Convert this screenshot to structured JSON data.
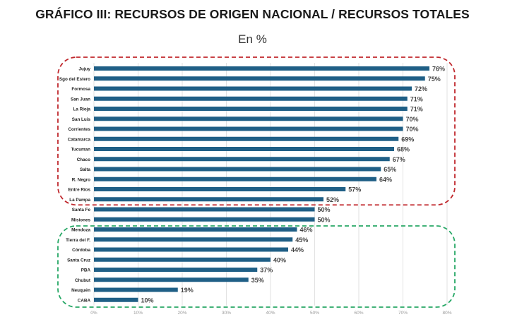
{
  "chart_data": {
    "type": "bar",
    "orientation": "horizontal",
    "title": "GRÁFICO III: RECURSOS DE ORIGEN NACIONAL / RECURSOS TOTALES",
    "subtitle": "En %",
    "xlabel": "",
    "ylabel": "",
    "xlim": [
      0,
      80
    ],
    "grid": true,
    "categories": [
      "Jujuy",
      "Sgo del Estero",
      "Formosa",
      "San Juan",
      "La Rioja",
      "San Luis",
      "Corrientes",
      "Catamarca",
      "Tucuman",
      "Chaco",
      "Salta",
      "R. Negro",
      "Entre Ríos",
      "La Pampa",
      "Santa Fe",
      "Misiones",
      "Mendoza",
      "Tierra del F.",
      "Córdoba",
      "Santa Cruz",
      "PBA",
      "Chubut",
      "Neuquén",
      "CABA"
    ],
    "values": [
      76,
      75,
      72,
      71,
      71,
      70,
      70,
      69,
      68,
      67,
      65,
      64,
      57,
      52,
      50,
      50,
      46,
      45,
      44,
      40,
      37,
      35,
      19,
      10
    ],
    "data_labels": [
      "76%",
      "75%",
      "72%",
      "71%",
      "71%",
      "70%",
      "70%",
      "69%",
      "68%",
      "67%",
      "65%",
      "64%",
      "57%",
      "52%",
      "50%",
      "50%",
      "46%",
      "45%",
      "44%",
      "40%",
      "37%",
      "35%",
      "19%",
      "10%"
    ],
    "x_ticks": [
      "0%",
      "10%",
      "20%",
      "30%",
      "40%",
      "50%",
      "60%",
      "70%",
      "80%"
    ],
    "x_tick_values": [
      0,
      10,
      20,
      30,
      40,
      50,
      60,
      70,
      80
    ],
    "groups": [
      {
        "name": "high",
        "first": "Jujuy",
        "last": "La Pampa",
        "color": "#c0282d"
      },
      {
        "name": "low",
        "first": "Mendoza",
        "last": "CABA",
        "color": "#27a866"
      }
    ],
    "bar_color": "#1f5f86",
    "label_color": "#444444"
  }
}
